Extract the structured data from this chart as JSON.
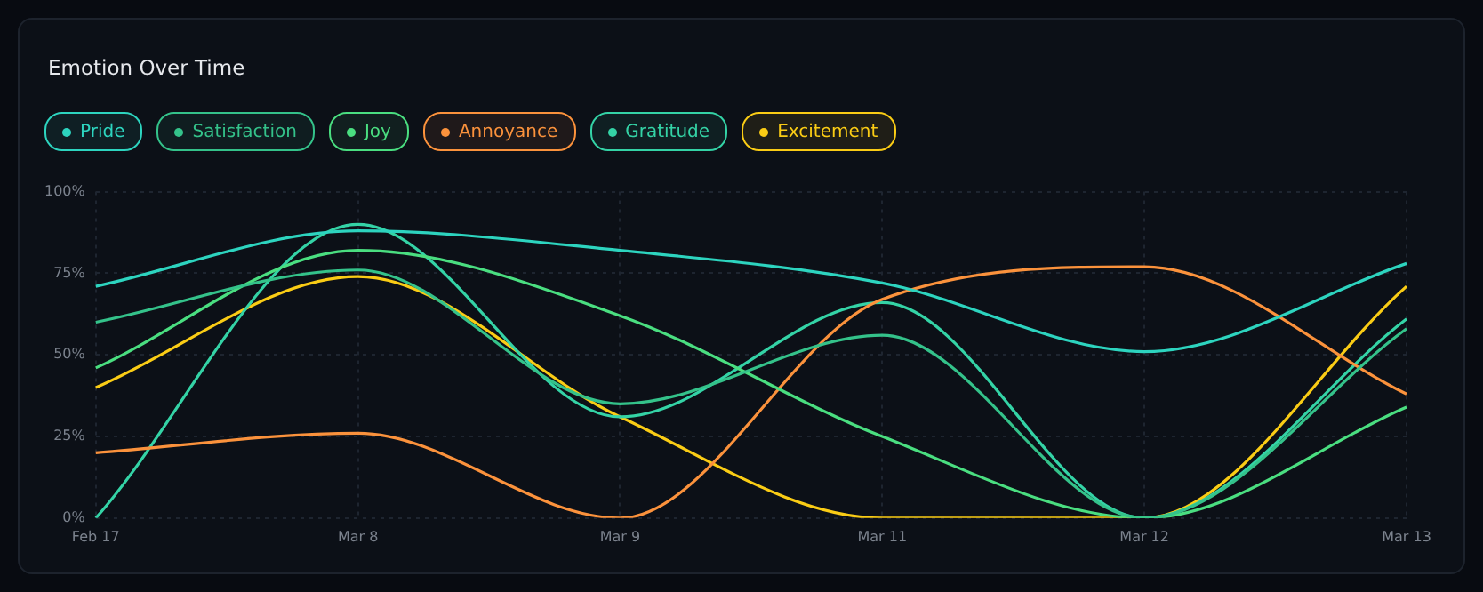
{
  "chart_data": {
    "type": "line",
    "title": "Emotion Over Time",
    "categories": [
      "Feb 17",
      "Mar 8",
      "Mar 9",
      "Mar 11",
      "Mar 12",
      "Mar 13"
    ],
    "series": [
      {
        "name": "Pride",
        "color": "#2dd4bf",
        "values": [
          71,
          88,
          82,
          72,
          51,
          78
        ]
      },
      {
        "name": "Satisfaction",
        "color": "#34c28a",
        "values": [
          60,
          76,
          35,
          56,
          0,
          58
        ]
      },
      {
        "name": "Joy",
        "color": "#4ade80",
        "values": [
          46,
          82,
          62,
          25,
          0,
          34
        ]
      },
      {
        "name": "Annoyance",
        "color": "#fb923c",
        "values": [
          20,
          26,
          0,
          67,
          77,
          38
        ]
      },
      {
        "name": "Gratitude",
        "color": "#34d3a6",
        "values": [
          0,
          90,
          31,
          66,
          0,
          61
        ]
      },
      {
        "name": "Excitement",
        "color": "#facc15",
        "values": [
          40,
          74,
          31,
          0,
          0,
          71
        ]
      }
    ],
    "ylim": [
      0,
      100
    ],
    "yticks": [
      {
        "value": 0,
        "label": "0%"
      },
      {
        "value": 25,
        "label": "25%"
      },
      {
        "value": 50,
        "label": "50%"
      },
      {
        "value": 75,
        "label": "75%"
      },
      {
        "value": 100,
        "label": "100%"
      }
    ],
    "grid": true,
    "legend": "top left",
    "marker": "none"
  }
}
